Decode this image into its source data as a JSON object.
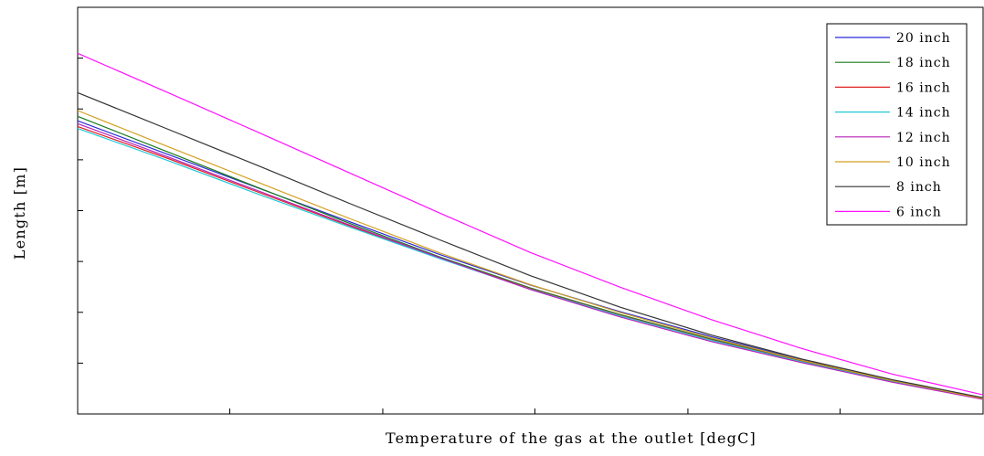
{
  "chart_data": {
    "type": "line",
    "title": "",
    "xlabel": "Temperature of the gas at the outlet [degC]",
    "ylabel": "Length [m]",
    "xlim": [
      0,
      1
    ],
    "ylim": [
      0,
      1
    ],
    "grid": false,
    "legend_position": "top-right",
    "x": [
      0,
      0.1,
      0.2,
      0.3,
      0.4,
      0.5,
      0.6,
      0.7,
      0.8,
      0.9,
      1.0
    ],
    "series": [
      {
        "name": "20 inch",
        "color": "#2b2bd9",
        "values": [
          0.721,
          0.638,
          0.555,
          0.473,
          0.392,
          0.317,
          0.251,
          0.19,
          0.133,
          0.082,
          0.039
        ]
      },
      {
        "name": "18 inch",
        "color": "#1a7a1a",
        "values": [
          0.732,
          0.644,
          0.556,
          0.469,
          0.386,
          0.31,
          0.244,
          0.184,
          0.13,
          0.08,
          0.037
        ]
      },
      {
        "name": "16 inch",
        "color": "#e02020",
        "values": [
          0.707,
          0.628,
          0.545,
          0.463,
          0.383,
          0.308,
          0.242,
          0.182,
          0.129,
          0.079,
          0.037
        ]
      },
      {
        "name": "14 inch",
        "color": "#20c8d8",
        "values": [
          0.702,
          0.623,
          0.54,
          0.46,
          0.382,
          0.307,
          0.241,
          0.181,
          0.128,
          0.079,
          0.037
        ]
      },
      {
        "name": "12 inch",
        "color": "#b820b8",
        "values": [
          0.714,
          0.632,
          0.548,
          0.465,
          0.384,
          0.306,
          0.238,
          0.178,
          0.126,
          0.078,
          0.036
        ]
      },
      {
        "name": "10 inch",
        "color": "#d4a020",
        "values": [
          0.746,
          0.657,
          0.569,
          0.481,
          0.396,
          0.318,
          0.249,
          0.187,
          0.132,
          0.082,
          0.038
        ]
      },
      {
        "name": "8 inch",
        "color": "#333333",
        "values": [
          0.79,
          0.7,
          0.61,
          0.518,
          0.428,
          0.34,
          0.262,
          0.194,
          0.135,
          0.084,
          0.04
        ]
      },
      {
        "name": "6 inch",
        "color": "#ff10ff",
        "values": [
          0.887,
          0.79,
          0.692,
          0.593,
          0.494,
          0.397,
          0.311,
          0.232,
          0.161,
          0.098,
          0.047
        ]
      }
    ]
  }
}
